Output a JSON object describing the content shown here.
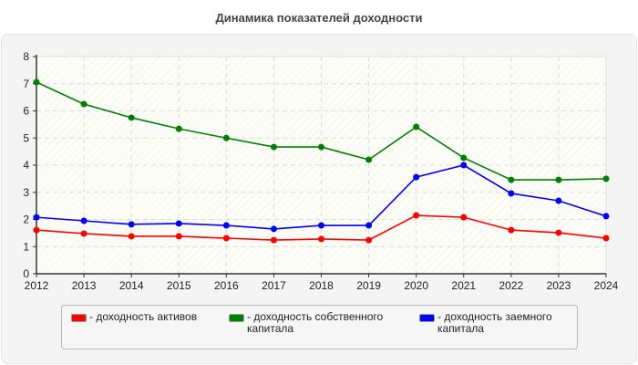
{
  "chart_data": {
    "type": "line",
    "title": "Динамика показателей доходности",
    "x": [
      2012,
      2013,
      2014,
      2015,
      2016,
      2017,
      2018,
      2019,
      2020,
      2021,
      2022,
      2023,
      2024
    ],
    "ylim": [
      0,
      8
    ],
    "yticks": [
      0,
      1,
      2,
      3,
      4,
      5,
      6,
      7,
      8
    ],
    "grid": true,
    "legend_position": "bottom",
    "series": [
      {
        "name": "- доходность активов",
        "color": "#ff0000",
        "values": [
          1.61,
          1.48,
          1.38,
          1.38,
          1.31,
          1.24,
          1.28,
          1.24,
          2.15,
          2.08,
          1.61,
          1.51,
          1.31
        ]
      },
      {
        "name": "- доходность собственного капитала",
        "color": "#008000",
        "values": [
          7.06,
          6.25,
          5.75,
          5.34,
          5.0,
          4.67,
          4.67,
          4.2,
          5.41,
          4.27,
          3.46,
          3.46,
          3.5
        ]
      },
      {
        "name": "- доходность заемного капитала",
        "color": "#0000ff",
        "values": [
          2.08,
          1.95,
          1.82,
          1.85,
          1.78,
          1.65,
          1.78,
          1.78,
          3.56,
          4.0,
          2.96,
          2.69,
          2.12
        ]
      }
    ]
  }
}
